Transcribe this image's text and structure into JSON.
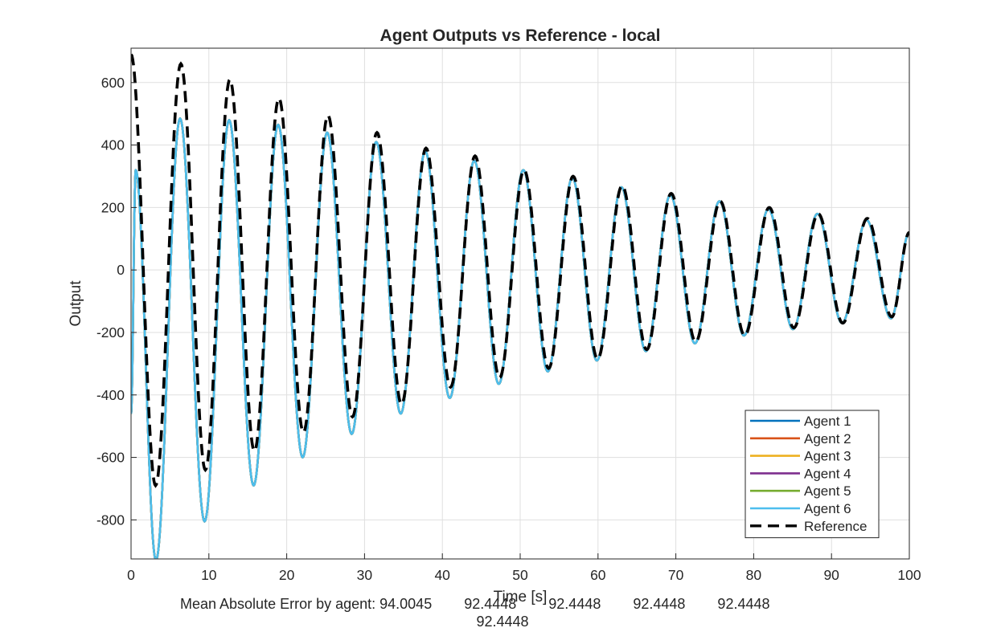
{
  "chart_data": {
    "type": "line",
    "title": "Agent Outputs vs Reference - local",
    "xlabel": "Time [s]",
    "ylabel": "Output",
    "xlim": [
      0,
      100
    ],
    "ylim": [
      -925,
      710
    ],
    "xticks": [
      0,
      10,
      20,
      30,
      40,
      50,
      60,
      70,
      80,
      90,
      100
    ],
    "yticks": [
      -800,
      -600,
      -400,
      -200,
      0,
      200,
      400,
      600
    ],
    "grid": true,
    "legend_position": "bottom-right",
    "reference": {
      "name": "Reference",
      "color": "#000000",
      "style": "dashed",
      "extrema": [
        [
          0,
          690
        ],
        [
          3.15,
          -690
        ],
        [
          6.4,
          660
        ],
        [
          9.55,
          -640
        ],
        [
          12.7,
          610
        ],
        [
          15.85,
          -580
        ],
        [
          19.0,
          550
        ],
        [
          22.15,
          -520
        ],
        [
          25.3,
          495
        ],
        [
          28.45,
          -470
        ],
        [
          31.6,
          440
        ],
        [
          34.75,
          -430
        ],
        [
          37.9,
          390
        ],
        [
          41.05,
          -375
        ],
        [
          44.2,
          365
        ],
        [
          47.35,
          -345
        ],
        [
          50.5,
          320
        ],
        [
          53.65,
          -315
        ],
        [
          56.8,
          300
        ],
        [
          59.95,
          -285
        ],
        [
          63.1,
          270
        ],
        [
          66.25,
          -255
        ],
        [
          69.4,
          245
        ],
        [
          72.55,
          -230
        ],
        [
          75.7,
          220
        ],
        [
          78.85,
          -210
        ],
        [
          82.0,
          200
        ],
        [
          85.15,
          -185
        ],
        [
          88.3,
          180
        ],
        [
          91.45,
          -170
        ],
        [
          94.6,
          165
        ],
        [
          97.75,
          -150
        ],
        [
          100,
          120
        ]
      ]
    },
    "agents": {
      "extrema": [
        [
          0,
          -460
        ],
        [
          0.6,
          320
        ],
        [
          3.2,
          -930
        ],
        [
          6.3,
          485
        ],
        [
          9.45,
          -805
        ],
        [
          12.6,
          480
        ],
        [
          15.75,
          -690
        ],
        [
          18.9,
          465
        ],
        [
          22.05,
          -600
        ],
        [
          25.2,
          440
        ],
        [
          28.35,
          -525
        ],
        [
          31.5,
          410
        ],
        [
          34.65,
          -460
        ],
        [
          37.8,
          380
        ],
        [
          40.95,
          -410
        ],
        [
          44.1,
          350
        ],
        [
          47.25,
          -365
        ],
        [
          50.4,
          320
        ],
        [
          53.55,
          -325
        ],
        [
          56.7,
          295
        ],
        [
          59.85,
          -290
        ],
        [
          63.0,
          265
        ],
        [
          66.15,
          -260
        ],
        [
          69.3,
          240
        ],
        [
          72.45,
          -235
        ],
        [
          75.6,
          220
        ],
        [
          78.75,
          -210
        ],
        [
          81.9,
          195
        ],
        [
          85.05,
          -190
        ],
        [
          88.2,
          180
        ],
        [
          91.35,
          -170
        ],
        [
          94.5,
          160
        ],
        [
          97.65,
          -155
        ],
        [
          100,
          120
        ]
      ]
    },
    "series": [
      {
        "name": "Agent 1",
        "color": "#0072BD"
      },
      {
        "name": "Agent 2",
        "color": "#D95319"
      },
      {
        "name": "Agent 3",
        "color": "#EDB120"
      },
      {
        "name": "Agent 4",
        "color": "#7E2F8E"
      },
      {
        "name": "Agent 5",
        "color": "#77AC30"
      },
      {
        "name": "Agent 6",
        "color": "#4DBEEE"
      }
    ],
    "footer": {
      "prefix": "Mean Absolute Error by agent: ",
      "values": [
        "94.0045",
        "92.4448",
        "92.4448",
        "92.4448",
        "92.4448",
        "92.4448"
      ]
    }
  }
}
